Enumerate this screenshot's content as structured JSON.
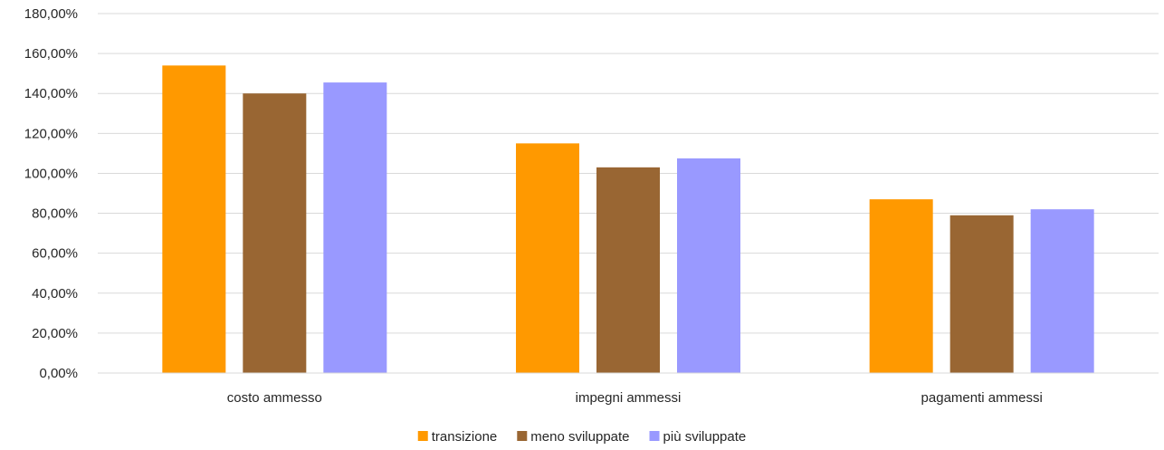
{
  "chart_data": {
    "type": "bar",
    "categories": [
      "costo ammesso",
      "impegni ammessi",
      "pagamenti ammessi"
    ],
    "series": [
      {
        "name": "transizione",
        "color": "#FF9900",
        "values": [
          154.0,
          115.0,
          87.0
        ]
      },
      {
        "name": "meno sviluppate",
        "color": "#996633",
        "values": [
          140.0,
          103.0,
          79.0
        ]
      },
      {
        "name": "più sviluppate",
        "color": "#9999FF",
        "values": [
          145.5,
          107.5,
          82.0
        ]
      }
    ],
    "ylim": [
      0,
      180
    ],
    "yticks": [
      "0,00%",
      "20,00%",
      "40,00%",
      "60,00%",
      "80,00%",
      "100,00%",
      "120,00%",
      "140,00%",
      "160,00%",
      "180,00%"
    ],
    "grid": true,
    "legend_position": "bottom",
    "gridline_color": "#D9D9D9"
  }
}
